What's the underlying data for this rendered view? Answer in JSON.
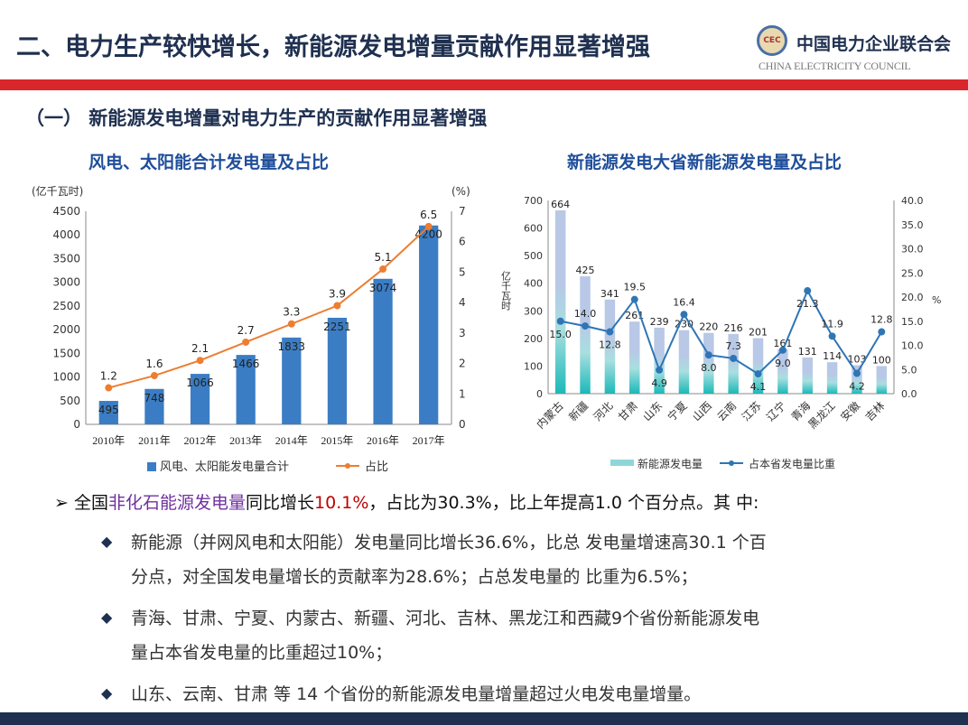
{
  "header": {
    "title": "二、电力生产较快增长，新能源发电增量贡献作用显著增强",
    "org_cn": "中国电力企业联合会",
    "org_en": "CHINA ELECTRICITY COUNCIL",
    "seal": "CEC"
  },
  "section": {
    "subtitle": "（一）  新能源发电增量对电力生产的贡献作用显著增强"
  },
  "chart_data": [
    {
      "type": "bar+line",
      "title": "风电、太阳能合计发电量及占比",
      "ylabel": "(亿千瓦时)",
      "y2label": "(%)",
      "categories": [
        "2010年",
        "2011年",
        "2012年",
        "2013年",
        "2014年",
        "2015年",
        "2016年",
        "2017年"
      ],
      "ylim": [
        0,
        4500
      ],
      "yticks": [
        "0",
        "500",
        "1000",
        "1500",
        "2000",
        "2500",
        "3000",
        "3500",
        "4000",
        "4500"
      ],
      "y2lim": [
        0,
        7
      ],
      "y2ticks": [
        "0",
        "1",
        "2",
        "3",
        "4",
        "5",
        "6",
        "7"
      ],
      "series": [
        {
          "name": "风电、太阳能发电量合计",
          "type": "bar",
          "values": [
            495,
            748,
            1066,
            1466,
            1833,
            2251,
            3074,
            4200
          ],
          "color": "#3b7dc4"
        },
        {
          "name": "占比",
          "type": "line",
          "values": [
            1.2,
            1.6,
            2.1,
            2.7,
            3.3,
            3.9,
            5.1,
            6.5
          ],
          "color": "#ed7d31"
        }
      ],
      "legend": "bottom"
    },
    {
      "type": "bar+line",
      "title": "新能源发电大省新能源发电量及占比",
      "ylabel": "亿千瓦时",
      "y2label": "%",
      "categories": [
        "内蒙古",
        "新疆",
        "河北",
        "甘肃",
        "山东",
        "宁夏",
        "山西",
        "云南",
        "江苏",
        "辽宁",
        "青海",
        "黑龙江",
        "安徽",
        "吉林"
      ],
      "ylim": [
        0,
        700
      ],
      "yticks": [
        "0",
        "100",
        "200",
        "300",
        "400",
        "500",
        "600",
        "700"
      ],
      "y2lim": [
        0,
        40
      ],
      "y2ticks": [
        "0.0",
        "5.0",
        "10.0",
        "15.0",
        "20.0",
        "25.0",
        "30.0",
        "35.0",
        "40.0"
      ],
      "series": [
        {
          "name": "新能源发电量",
          "type": "bar",
          "values": [
            664,
            425,
            341,
            261,
            239,
            230,
            220,
            216,
            201,
            161,
            131,
            114,
            103,
            100
          ],
          "color": "#b8c8e6"
        },
        {
          "name": "占本省发电量比重",
          "type": "line",
          "values": [
            15.0,
            14.0,
            12.8,
            19.5,
            4.9,
            16.4,
            8.0,
            7.3,
            4.1,
            9.0,
            21.3,
            11.9,
            4.2,
            12.8
          ],
          "color": "#2e75b6"
        }
      ],
      "legend": "bottom"
    }
  ],
  "bullets": {
    "main": {
      "a": "全国",
      "b": "非化石能源发电量",
      "c": "同比增长",
      "d": "10.1%",
      "e": "，占比为30.3%，比上年提高1.0 个百分点。其 中:"
    },
    "items": [
      {
        "l1": "新能源（并网风电和太阳能）发电量同比增长36.6%，比总 发电量增速高30.1 个百",
        "l2": "分点，对全国发电量增长的贡献率为28.6%；占总发电量的 比重为6.5%；"
      },
      {
        "l1": "青海、甘肃、宁夏、内蒙古、新疆、河北、吉林、黑龙江和西藏9个省份新能源发电",
        "l2": "量占本省发电量的比重超过10%；"
      },
      {
        "l1": "山东、云南、甘肃 等 14 个省份的新能源发电量增量超过火电发电量增量。",
        "l2": ""
      }
    ]
  }
}
